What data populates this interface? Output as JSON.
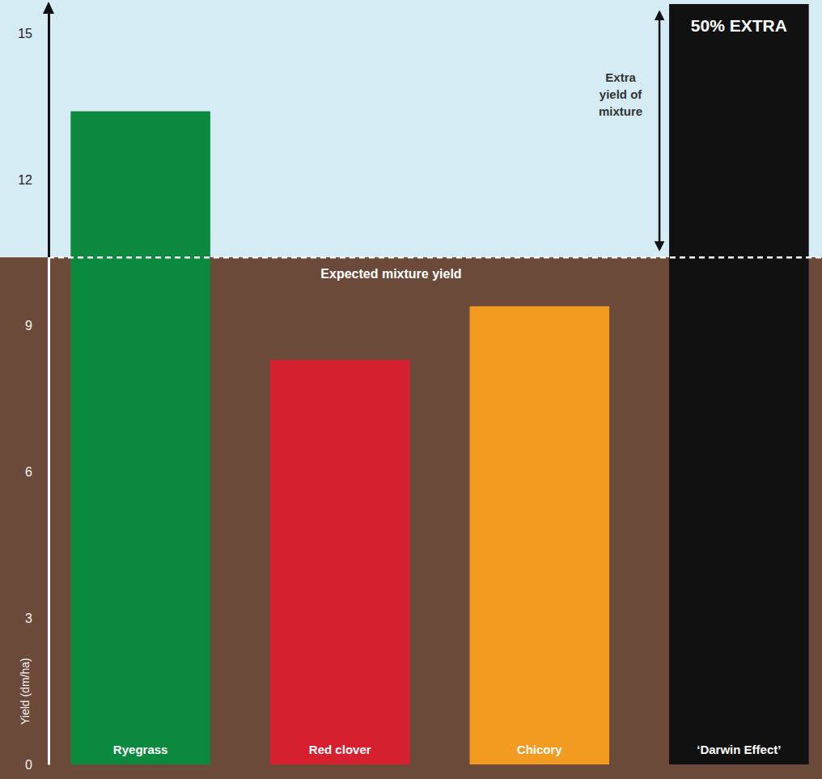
{
  "chart_data": {
    "type": "bar",
    "categories": [
      "Ryegrass",
      "Red clover",
      "Chicory",
      "‘Darwin Effect’"
    ],
    "values": [
      13.4,
      8.3,
      9.4,
      15.6
    ],
    "colors": [
      "#0b8a3e",
      "#d7202f",
      "#f39a21",
      "#111111"
    ],
    "ylabel": "Yield (dm/ha)",
    "ylim": [
      0,
      15.6
    ],
    "yticks": [
      0,
      3,
      6,
      9,
      12,
      15
    ],
    "grid": false,
    "annotations": [
      {
        "text": "Expected mixture yield",
        "y": 10.4
      },
      {
        "text": "Extra yield of mixture"
      },
      {
        "text": "50% EXTRA"
      }
    ]
  }
}
